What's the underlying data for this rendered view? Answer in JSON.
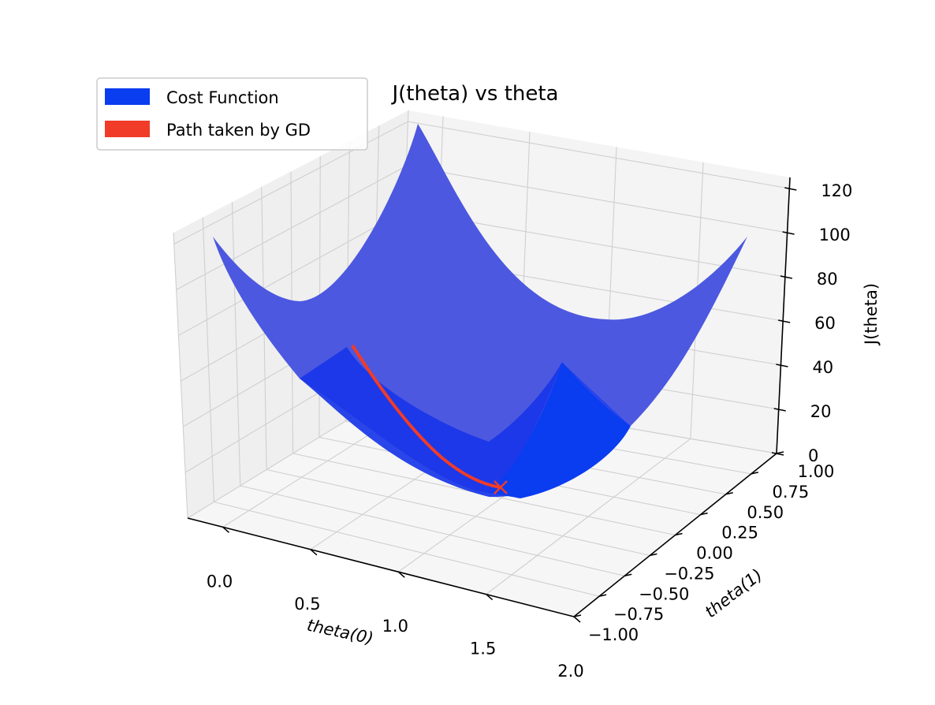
{
  "chart_data": {
    "type": "surface",
    "title": "J(theta) vs theta",
    "xlabel": "theta(0)",
    "ylabel": "theta(1)",
    "zlabel": "J(theta)",
    "xticks": [
      "0.0",
      "0.5",
      "1.0",
      "1.5",
      "2.0"
    ],
    "yticks": [
      "−1.00",
      "−0.75",
      "−0.50",
      "−0.25",
      "0.00",
      "0.25",
      "0.50",
      "0.75",
      "1.00"
    ],
    "zticks": [
      "0",
      "20",
      "40",
      "60",
      "80",
      "100",
      "120"
    ],
    "xlim": [
      -0.2,
      2.0
    ],
    "ylim": [
      -1.0,
      1.0
    ],
    "zlim": [
      0,
      125
    ],
    "legend": {
      "placement": "upper-left",
      "entries": [
        {
          "label": "Cost Function",
          "color": "#0a3cf0"
        },
        {
          "label": "Path taken by GD",
          "color": "#f03c28"
        }
      ]
    },
    "series": [
      {
        "name": "Cost Function",
        "type": "surface",
        "surface_min": {
          "theta0": 1.0,
          "theta1": 0.0,
          "J": 0
        },
        "corner_values": [
          {
            "theta0": -0.2,
            "theta1": -1.0,
            "J": 125
          },
          {
            "theta0": 2.0,
            "theta1": 1.0,
            "J": 125
          },
          {
            "theta0": -0.2,
            "theta1": 1.0,
            "J": 85
          },
          {
            "theta0": 2.0,
            "theta1": -1.0,
            "J": 85
          }
        ]
      },
      {
        "name": "Path taken by GD",
        "type": "line",
        "end_marker": "x",
        "points": [
          {
            "theta0": 0.05,
            "theta1": 0.0,
            "J": 50
          },
          {
            "theta0": 0.25,
            "theta1": 0.0,
            "J": 32
          },
          {
            "theta0": 0.45,
            "theta1": 0.0,
            "J": 18
          },
          {
            "theta0": 0.65,
            "theta1": 0.0,
            "J": 8
          },
          {
            "theta0": 0.85,
            "theta1": 0.0,
            "J": 2
          },
          {
            "theta0": 1.0,
            "theta1": 0.0,
            "J": 0.3
          }
        ]
      }
    ],
    "grid": true
  }
}
